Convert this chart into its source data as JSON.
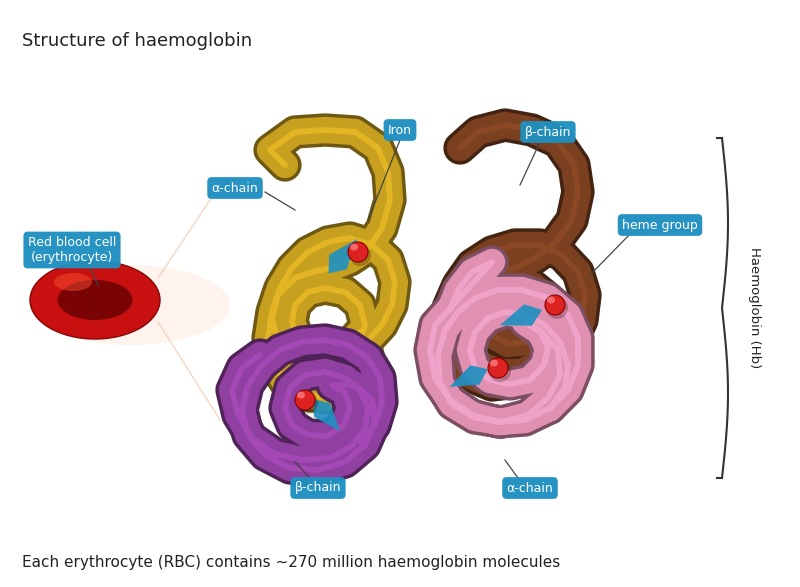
{
  "title": "Structure of haemoglobin",
  "footer": "Each erythrocyte (RBC) contains ~270 million haemoglobin molecules",
  "background_color": "#ffffff",
  "title_fontsize": 13,
  "footer_fontsize": 11,
  "labels": {
    "iron": "Iron",
    "beta_chain_top": "β-chain",
    "alpha_chain_left": "α-chain",
    "heme_group": "heme group",
    "red_blood_cell": "Red blood cell\n(erythrocyte)",
    "beta_chain_bottom": "β-chain",
    "alpha_chain_bottom": "α-chain",
    "haemoglobin": "Haemoglobin (Hb)"
  },
  "label_bg_color": "#2090c0",
  "label_text_color": "#ffffff",
  "chain_colors": {
    "alpha1": "#c8a020",
    "alpha2": "#e090b0",
    "beta1": "#9040a0",
    "beta2": "#7a4020"
  },
  "iron_color": "#dd2222",
  "arrow_color": "#2090c0",
  "title_color": "#222222",
  "footer_color": "#222222"
}
